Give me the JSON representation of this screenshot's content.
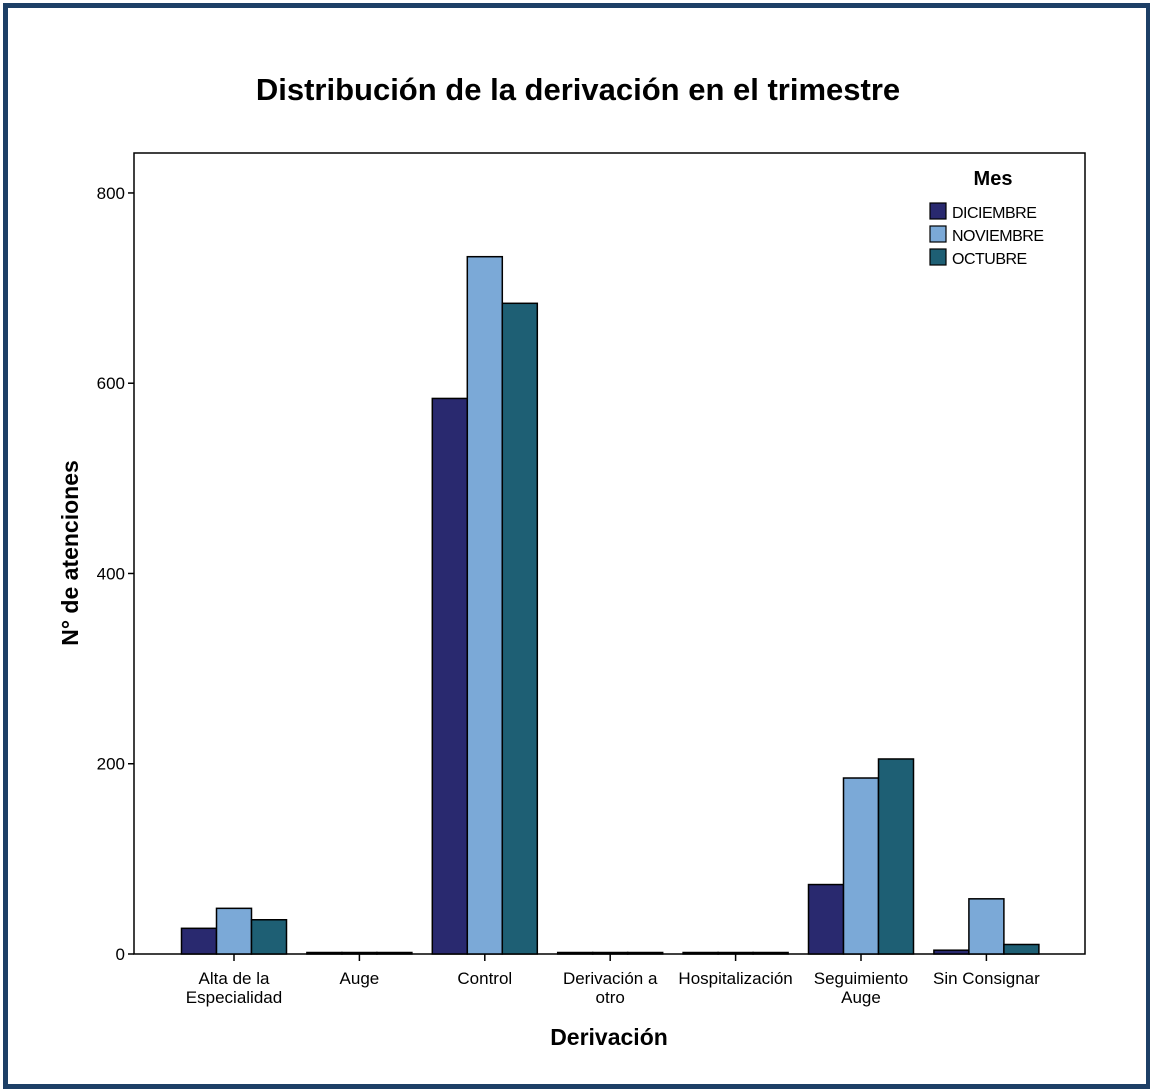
{
  "chart_data": {
    "type": "bar",
    "title": "Distribución de la derivación en el trimestre",
    "xlabel": "Derivación",
    "ylabel": "N° de atenciones",
    "ylim": [
      0,
      842
    ],
    "yticks": [
      0,
      200,
      400,
      600,
      800
    ],
    "grid": false,
    "legend_title": "Mes",
    "legend_position": "top-right",
    "categories": [
      [
        "Alta de la",
        "Especialidad"
      ],
      [
        "Auge"
      ],
      [
        "Control"
      ],
      [
        "Derivación a",
        "otro"
      ],
      [
        "Hospitalización"
      ],
      [
        "Seguimiento",
        "Auge"
      ],
      [
        "Sin Consignar"
      ]
    ],
    "series": [
      {
        "name": "DICIEMBRE",
        "color": "#29296f",
        "values": [
          27,
          0,
          584,
          0,
          0,
          73,
          4
        ]
      },
      {
        "name": "NOVIEMBRE",
        "color": "#7ba9d7",
        "values": [
          48,
          1,
          733,
          0,
          0,
          185,
          58
        ]
      },
      {
        "name": "OCTUBRE",
        "color": "#1e5f74",
        "values": [
          36,
          1,
          684,
          1,
          1,
          205,
          10
        ]
      }
    ]
  },
  "frame_color": "#1d3f66"
}
